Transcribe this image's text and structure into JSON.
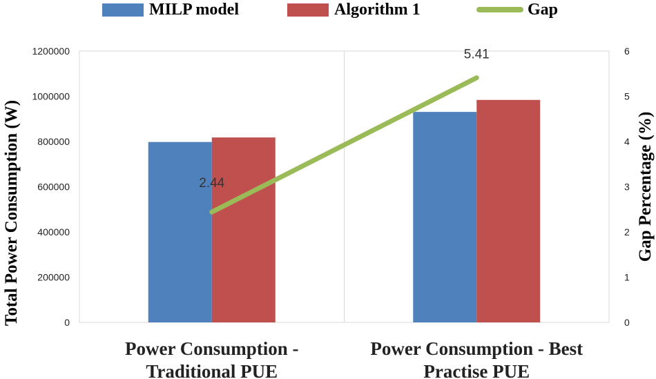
{
  "chart_data": {
    "type": "bar",
    "categories": [
      [
        "Power Consumption -",
        "Traditional PUE"
      ],
      [
        "Power Consumption - Best",
        "Practise PUE"
      ]
    ],
    "series": [
      {
        "name": "MILP model",
        "color": "#4f81bd",
        "values": [
          798000,
          931000
        ],
        "axis": "left"
      },
      {
        "name": "Algorithm 1",
        "color": "#c0504d",
        "values": [
          818000,
          984000
        ],
        "axis": "left"
      }
    ],
    "line_series": {
      "name": "Gap",
      "color": "#9bbb59",
      "values": [
        2.44,
        5.41
      ],
      "labels": [
        "2.44",
        "5.41"
      ],
      "axis": "right"
    },
    "ylabel": "Total Power Consumption (W)",
    "y2label": "Gap Percentage (%)",
    "ylim": [
      0,
      1200000
    ],
    "y2lim": [
      0,
      6
    ],
    "yticks": [
      "0",
      "200000",
      "400000",
      "600000",
      "800000",
      "1000000",
      "1200000"
    ],
    "y2ticks": [
      "0",
      "1",
      "2",
      "3",
      "4",
      "5",
      "6"
    ],
    "grid": true,
    "legend": "top"
  },
  "legend": {
    "items": [
      {
        "label": "MILP model",
        "icon": "bar-swatch-blue"
      },
      {
        "label": "Algorithm 1",
        "icon": "bar-swatch-red"
      },
      {
        "label": "Gap",
        "icon": "line-swatch-green"
      }
    ]
  }
}
